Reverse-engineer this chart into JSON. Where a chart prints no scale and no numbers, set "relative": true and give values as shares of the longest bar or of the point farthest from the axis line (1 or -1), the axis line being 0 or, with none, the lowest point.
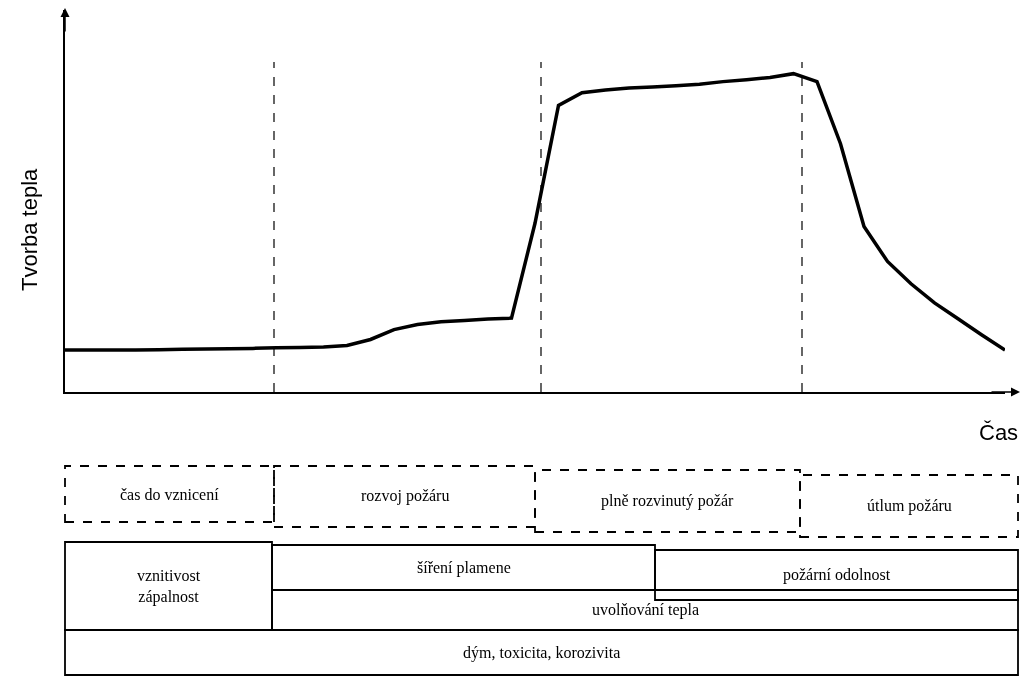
{
  "chart_data": {
    "type": "line",
    "relative": true,
    "xlabel": "Čas",
    "ylabel": "Tvorba tepla",
    "marker": "none",
    "line_style": "solid",
    "categories": [
      null,
      null,
      null,
      null,
      null,
      null,
      null,
      null,
      null,
      null,
      null,
      null,
      null,
      null,
      null,
      null,
      null,
      null,
      null,
      null,
      null,
      null,
      null,
      null,
      null,
      null,
      null,
      null,
      null,
      null,
      null,
      null,
      null,
      null,
      null,
      null,
      null,
      null,
      null,
      null,
      null
    ],
    "series": [
      {
        "color": "#000000",
        "values": [
          0.132,
          0.132,
          0.132,
          0.132,
          0.133,
          0.134,
          0.135,
          0.136,
          0.137,
          0.139,
          0.14,
          0.141,
          0.146,
          0.165,
          0.196,
          0.212,
          0.221,
          0.225,
          0.229,
          0.232,
          0.53,
          0.9,
          0.94,
          0.949,
          0.955,
          0.958,
          0.962,
          0.967,
          0.975,
          0.981,
          0.988,
          1.0,
          0.975,
          0.78,
          0.52,
          0.41,
          0.34,
          0.28,
          0.23,
          0.18,
          0.132
        ]
      }
    ],
    "annotations": [
      "čas do vznicení",
      "rozvoj požáru",
      "plně rozvinutý požár",
      "útlum požáru",
      "vznitivost\nzápalnost",
      "šíření plamene",
      "požární odolnost",
      "uvolňování tepla",
      "dým, toxicita, korozivita"
    ]
  }
}
